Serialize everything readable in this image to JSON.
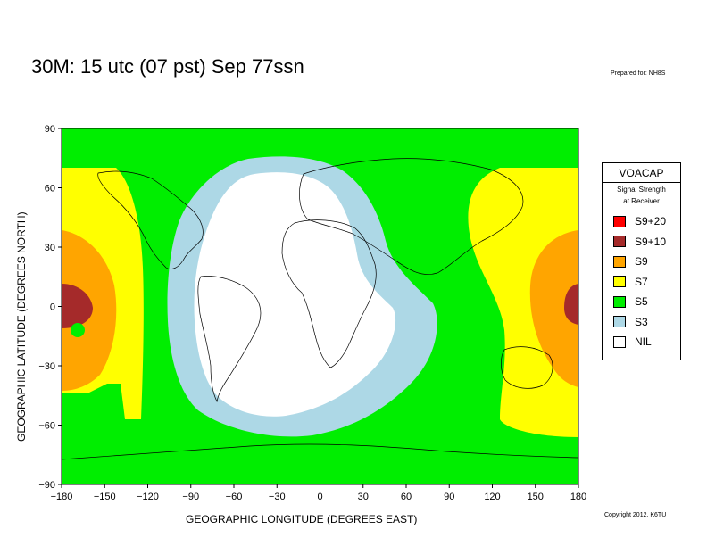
{
  "title": "30M:  15 utc (07 pst) Sep 77ssn",
  "prepared_for": "Prepared for: NH8S",
  "copyright": "Copyright 2012, K6TU",
  "map": {
    "xlabel": "GEOGRAPHIC LONGITUDE (DEGREES EAST)",
    "ylabel": "GEOGRAPHIC LATITUDE (DEGREES NORTH)",
    "x_ticks": [
      "−180",
      "−150",
      "−120",
      "−90",
      "−60",
      "−30",
      "0",
      "30",
      "60",
      "90",
      "120",
      "150",
      "180"
    ],
    "y_ticks": [
      "90",
      "60",
      "30",
      "0",
      "−30",
      "−60",
      "−90"
    ],
    "x_range": [
      -180,
      180
    ],
    "y_range": [
      -90,
      90
    ]
  },
  "legend": {
    "title": "VOACAP",
    "subtitle_line1": "Signal Strength",
    "subtitle_line2": "at Receiver",
    "items": [
      {
        "label": "S9+20",
        "color": "#ff0000"
      },
      {
        "label": "S9+10",
        "color": "#a52a2a"
      },
      {
        "label": "S9",
        "color": "#ffa500"
      },
      {
        "label": "S7",
        "color": "#ffff00"
      },
      {
        "label": "S5",
        "color": "#00ee00"
      },
      {
        "label": "S3",
        "color": "#add8e6"
      },
      {
        "label": "NIL",
        "color": "#ffffff"
      }
    ]
  },
  "colors": {
    "s9": "#ffa500",
    "s9_10": "#a52a2a",
    "s7": "#ffff00",
    "s5": "#00ee00",
    "s3": "#add8e6",
    "nil": "#ffffff"
  }
}
